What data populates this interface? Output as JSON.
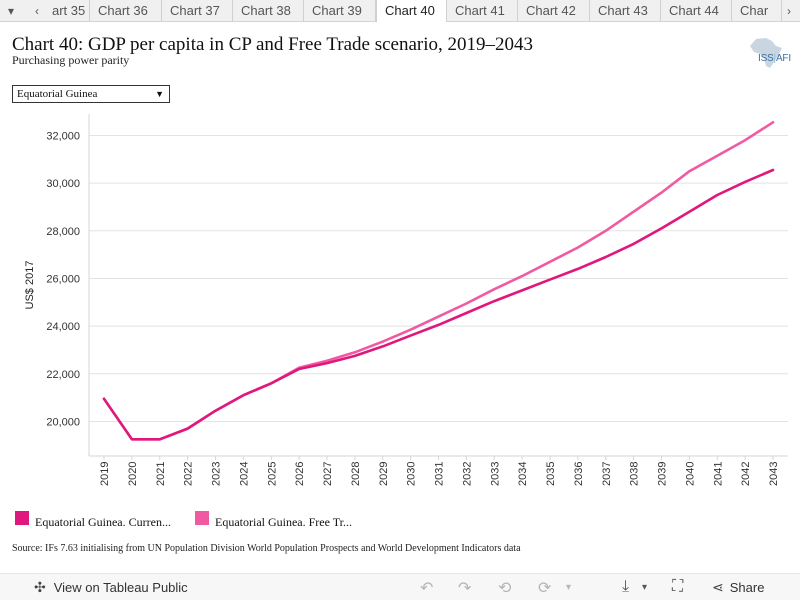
{
  "tabs": {
    "items": [
      "art 35",
      "Chart 36",
      "Chart 37",
      "Chart 38",
      "Chart 39",
      "Chart 40",
      "Chart 41",
      "Chart 42",
      "Chart 43",
      "Chart 44",
      "Char"
    ],
    "active_index": 5
  },
  "header": {
    "title": "Chart 40: GDP per capita in CP and Free Trade scenario, 2019–2043",
    "subtitle": "Purchasing power parity",
    "logo_left": "ISS",
    "logo_right": "AFI"
  },
  "filter": {
    "selected": "Equatorial Guinea"
  },
  "chart_data": {
    "type": "line",
    "ylabel": "US$ 2017",
    "xlabel": "",
    "x": [
      "2019",
      "2020",
      "2021",
      "2022",
      "2023",
      "2024",
      "2025",
      "2026",
      "2027",
      "2028",
      "2029",
      "2030",
      "2031",
      "2032",
      "2033",
      "2034",
      "2035",
      "2036",
      "2037",
      "2038",
      "2039",
      "2040",
      "2041",
      "2042",
      "2043"
    ],
    "ylim": [
      18550,
      32900
    ],
    "yticks": [
      20000,
      22000,
      24000,
      26000,
      28000,
      30000,
      32000
    ],
    "ytick_labels": [
      "20,000",
      "22,000",
      "24,000",
      "26,000",
      "28,000",
      "30,000",
      "32,000"
    ],
    "grid": true,
    "legend_position": "bottom",
    "series": [
      {
        "name": "Equatorial Guinea. Curren...",
        "color": "#e0177d",
        "values": [
          20950,
          19250,
          19250,
          19700,
          20450,
          21100,
          21600,
          22200,
          22450,
          22750,
          23150,
          23600,
          24050,
          24550,
          25050,
          25500,
          25950,
          26400,
          26900,
          27450,
          28100,
          28800,
          29500,
          30050,
          30550
        ]
      },
      {
        "name": "Equatorial Guinea. Free Tr...",
        "color": "#ef5aa3",
        "values": [
          20950,
          19250,
          19250,
          19700,
          20450,
          21100,
          21600,
          22250,
          22550,
          22900,
          23350,
          23850,
          24400,
          24950,
          25550,
          26100,
          26700,
          27300,
          28000,
          28800,
          29600,
          30500,
          31150,
          31800,
          32550
        ]
      }
    ]
  },
  "source": "Source: IFs 7.63 initialising from UN Population Division World Population Prospects and World Development Indicators data",
  "footer": {
    "view_link": "View on Tableau Public",
    "share_label": "Share"
  }
}
